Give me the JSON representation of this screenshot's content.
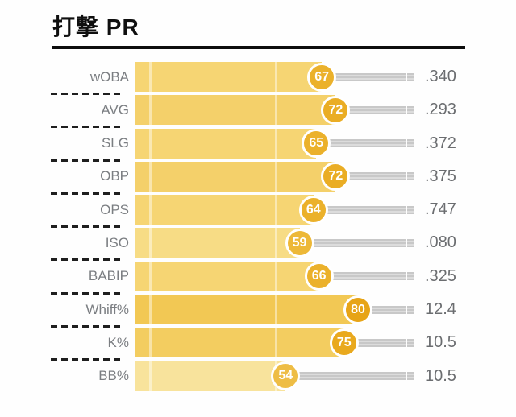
{
  "title": "打撃 PR",
  "chart_data": {
    "type": "bar",
    "orientation": "horizontal",
    "title": "打撃 PR",
    "scale": {
      "min": 0,
      "max": 100,
      "gridlines_pct": [
        5,
        50
      ]
    },
    "legend": "none",
    "value_column_note": "actual stat value shown right of each percentile bar",
    "rows": [
      {
        "label": "wOBA",
        "percentile": 67,
        "value": ".340",
        "bar_color": "#f6d573",
        "badge_color": "#ebb12b"
      },
      {
        "label": "AVG",
        "percentile": 72,
        "value": ".293",
        "bar_color": "#f4d06a",
        "badge_color": "#eaad24"
      },
      {
        "label": "SLG",
        "percentile": 65,
        "value": ".372",
        "bar_color": "#f6d573",
        "badge_color": "#ebb12b"
      },
      {
        "label": "OBP",
        "percentile": 72,
        "value": ".375",
        "bar_color": "#f4d06a",
        "badge_color": "#eaad24"
      },
      {
        "label": "OPS",
        "percentile": 64,
        "value": ".747",
        "bar_color": "#f6d573",
        "badge_color": "#ebb12b"
      },
      {
        "label": "ISO",
        "percentile": 59,
        "value": ".080",
        "bar_color": "#f7dc85",
        "badge_color": "#edb838"
      },
      {
        "label": "BABIP",
        "percentile": 66,
        "value": ".325",
        "bar_color": "#f6d573",
        "badge_color": "#ebb12b"
      },
      {
        "label": "Whiff%",
        "percentile": 80,
        "value": "12.4",
        "bar_color": "#f2c854",
        "badge_color": "#e7a417"
      },
      {
        "label": "K%",
        "percentile": 75,
        "value": "10.5",
        "bar_color": "#f3cd60",
        "badge_color": "#e9a91e"
      },
      {
        "label": "BB%",
        "percentile": 54,
        "value": "10.5",
        "bar_color": "#f8e39c",
        "badge_color": "#eebd45"
      }
    ]
  },
  "colors": {
    "title_text": "#0f0f0f",
    "title_rule": "#0d0d0d",
    "label_text": "#7b7e82",
    "value_text": "#6b6d70",
    "remainder_track": "#c8c8c8",
    "separator_dash": "#1f1f1f",
    "badge_ring": "#ffffff",
    "badge_number": "#ffffff"
  }
}
